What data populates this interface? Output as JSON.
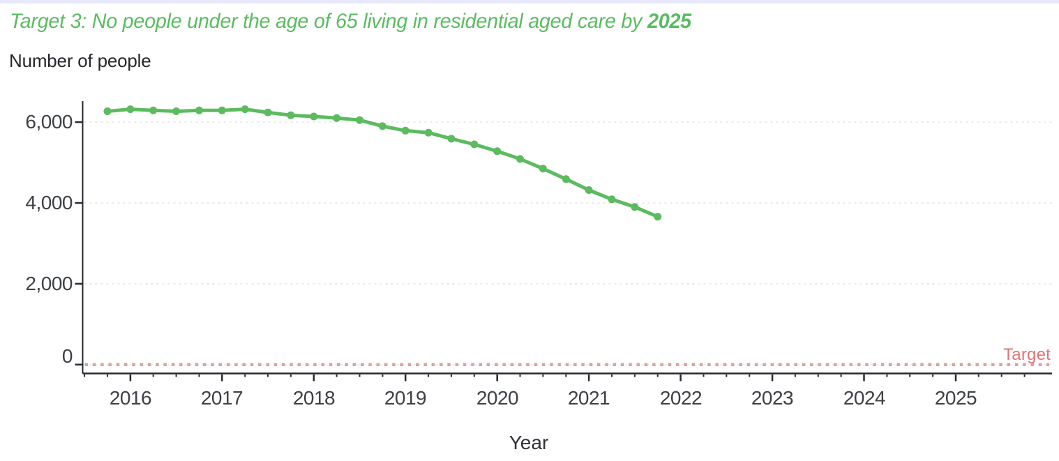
{
  "page": {
    "background": "#ffffff",
    "top_strip_color": "#e7e8fa"
  },
  "title": {
    "prefix": "Target 3: No people under the age of 65 living in residential aged care by ",
    "highlight": "2025",
    "color": "#5abc60"
  },
  "y_axis_title": "Number of people",
  "x_axis_title": "Year",
  "chart_data": {
    "type": "line",
    "title": "Target 3: No people under the age of 65 living in residential aged care by 2025",
    "xlabel": "Year",
    "ylabel": "Number of people",
    "x": [
      2015.75,
      2016.0,
      2016.25,
      2016.5,
      2016.75,
      2017.0,
      2017.25,
      2017.5,
      2017.75,
      2018.0,
      2018.25,
      2018.5,
      2018.75,
      2019.0,
      2019.25,
      2019.5,
      2019.75,
      2020.0,
      2020.25,
      2020.5,
      2020.75,
      2021.0,
      2021.25,
      2021.5,
      2021.75
    ],
    "series": [
      {
        "name": "Number of people under 65 in residential aged care",
        "color": "#5cbb5f",
        "values": [
          6270,
          6320,
          6290,
          6270,
          6290,
          6290,
          6320,
          6240,
          6170,
          6140,
          6100,
          6050,
          5900,
          5790,
          5740,
          5590,
          5450,
          5280,
          5090,
          4850,
          4590,
          4320,
          4090,
          3900,
          3660
        ]
      }
    ],
    "y_ticks": [
      {
        "value": 0,
        "label": "0"
      },
      {
        "value": 2000,
        "label": "2,000"
      },
      {
        "value": 4000,
        "label": "4,000"
      },
      {
        "value": 6000,
        "label": "6,000"
      }
    ],
    "x_ticks": [
      {
        "value": 2016,
        "label": "2016"
      },
      {
        "value": 2017,
        "label": "2017"
      },
      {
        "value": 2018,
        "label": "2018"
      },
      {
        "value": 2019,
        "label": "2019"
      },
      {
        "value": 2020,
        "label": "2020"
      },
      {
        "value": 2021,
        "label": "2021"
      },
      {
        "value": 2022,
        "label": "2022"
      },
      {
        "value": 2023,
        "label": "2023"
      },
      {
        "value": 2024,
        "label": "2024"
      },
      {
        "value": 2025,
        "label": "2025"
      }
    ],
    "xlim": [
      2015.48,
      2026.05
    ],
    "ylim": [
      -220,
      6520
    ],
    "grid": "horizontal-dashed",
    "gridline_color": "#e9e9e9",
    "axis_color": "#27292e",
    "reference_line": {
      "label": "Target",
      "value": 0,
      "style": "dotted",
      "line_color": "#dfa0a4",
      "label_color": "#e57373"
    },
    "legend_position": "none"
  }
}
